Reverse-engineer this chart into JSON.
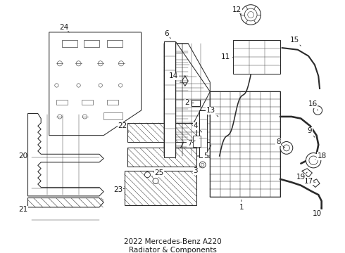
{
  "title": "2022 Mercedes-Benz A220\nRadiator & Components",
  "title_fontsize": 7.5,
  "bg_color": "#ffffff",
  "line_color": "#2a2a2a",
  "text_color": "#1a1a1a",
  "label_fontsize": 7.5,
  "figsize": [
    4.9,
    3.6
  ],
  "dpi": 100
}
